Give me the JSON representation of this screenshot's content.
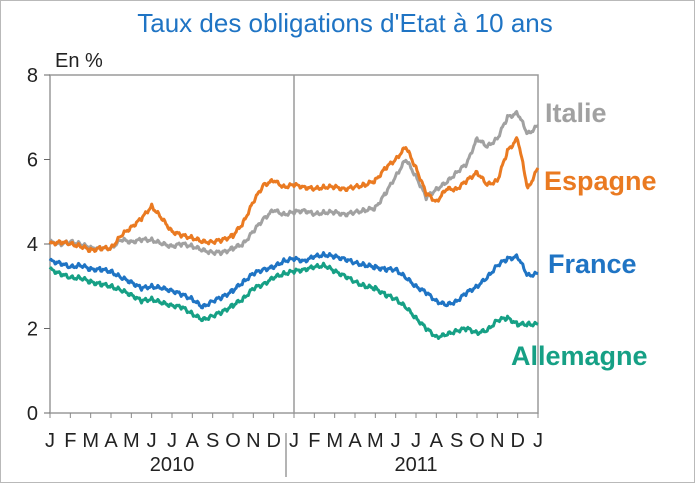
{
  "chart_data": {
    "type": "line",
    "title": "Taux des obligations d'Etat à 10 ans",
    "ylabel": "En  %",
    "ylim": [
      0,
      8
    ],
    "yticks": [
      0,
      2,
      4,
      6,
      8
    ],
    "grid": false,
    "legend": "direct labels at right end of each line",
    "x_start": "2010-01",
    "x_end": "2012-01",
    "month_labels": [
      "J",
      "F",
      "M",
      "A",
      "M",
      "J",
      "J",
      "A",
      "S",
      "O",
      "N",
      "D",
      "J",
      "F",
      "M",
      "A",
      "M",
      "J",
      "J",
      "A",
      "S",
      "O",
      "N",
      "D",
      "J"
    ],
    "years": [
      "2010",
      "2011"
    ],
    "colors": {
      "Italie": "#a1a1a1",
      "Espagne": "#ea7a21",
      "France": "#1f74c4",
      "Allemagne": "#16a085"
    },
    "series": [
      {
        "name": "Italie",
        "x": [
          0,
          0.5,
          1,
          1.5,
          2,
          2.5,
          3,
          3.5,
          4,
          4.5,
          5,
          5.5,
          6,
          6.5,
          7,
          7.5,
          8,
          8.5,
          9,
          9.5,
          10,
          10.5,
          11,
          11.5,
          12,
          12.5,
          13,
          13.5,
          14,
          14.5,
          15,
          15.5,
          16,
          16.5,
          17,
          17.5,
          18,
          18.5,
          19,
          19.5,
          20,
          20.5,
          21,
          21.5,
          22,
          22.5,
          23,
          23.5,
          24
        ],
        "values": [
          4.05,
          4.0,
          4.05,
          4.0,
          3.9,
          3.9,
          3.9,
          4.1,
          4.05,
          4.1,
          4.1,
          4.0,
          3.95,
          4.0,
          3.95,
          3.85,
          3.8,
          3.8,
          3.9,
          4.0,
          4.3,
          4.6,
          4.8,
          4.7,
          4.75,
          4.8,
          4.7,
          4.75,
          4.75,
          4.7,
          4.75,
          4.8,
          4.85,
          5.2,
          5.6,
          6.0,
          5.6,
          5.1,
          5.3,
          5.45,
          5.7,
          5.9,
          6.5,
          6.3,
          6.5,
          7.0,
          7.1,
          6.6,
          6.8
        ]
      },
      {
        "name": "Espagne",
        "x": [
          0,
          0.5,
          1,
          1.5,
          2,
          2.5,
          3,
          3.5,
          4,
          4.5,
          5,
          5.5,
          6,
          6.5,
          7,
          7.5,
          8,
          8.5,
          9,
          9.5,
          10,
          10.5,
          11,
          11.5,
          12,
          12.5,
          13,
          13.5,
          14,
          14.5,
          15,
          15.5,
          16,
          16.5,
          17,
          17.5,
          18,
          18.5,
          19,
          19.5,
          20,
          20.5,
          21,
          21.5,
          22,
          22.5,
          23,
          23.5,
          24
        ],
        "values": [
          4.0,
          4.05,
          4.0,
          3.95,
          3.85,
          3.9,
          3.9,
          4.2,
          4.4,
          4.6,
          4.9,
          4.6,
          4.3,
          4.2,
          4.15,
          4.05,
          4.05,
          4.1,
          4.2,
          4.5,
          5.0,
          5.4,
          5.5,
          5.35,
          5.4,
          5.35,
          5.3,
          5.35,
          5.35,
          5.3,
          5.35,
          5.4,
          5.5,
          5.8,
          6.0,
          6.3,
          5.8,
          5.2,
          5.0,
          5.3,
          5.3,
          5.5,
          5.7,
          5.4,
          5.5,
          6.2,
          6.5,
          5.3,
          5.8
        ]
      },
      {
        "name": "France",
        "x": [
          0,
          0.5,
          1,
          1.5,
          2,
          2.5,
          3,
          3.5,
          4,
          4.5,
          5,
          5.5,
          6,
          6.5,
          7,
          7.5,
          8,
          8.5,
          9,
          9.5,
          10,
          10.5,
          11,
          11.5,
          12,
          12.5,
          13,
          13.5,
          14,
          14.5,
          15,
          15.5,
          16,
          16.5,
          17,
          17.5,
          18,
          18.5,
          19,
          19.5,
          20,
          20.5,
          21,
          21.5,
          22,
          22.5,
          23,
          23.5,
          24
        ],
        "values": [
          3.6,
          3.55,
          3.45,
          3.5,
          3.4,
          3.4,
          3.35,
          3.2,
          3.1,
          2.95,
          3.0,
          2.95,
          2.9,
          2.8,
          2.7,
          2.5,
          2.65,
          2.75,
          2.9,
          3.1,
          3.3,
          3.4,
          3.45,
          3.6,
          3.65,
          3.6,
          3.7,
          3.75,
          3.7,
          3.65,
          3.55,
          3.5,
          3.45,
          3.4,
          3.4,
          3.2,
          3.0,
          2.85,
          2.65,
          2.55,
          2.65,
          2.85,
          3.0,
          3.2,
          3.5,
          3.65,
          3.7,
          3.25,
          3.3
        ]
      },
      {
        "name": "Allemagne",
        "x": [
          0,
          0.5,
          1,
          1.5,
          2,
          2.5,
          3,
          3.5,
          4,
          4.5,
          5,
          5.5,
          6,
          6.5,
          7,
          7.5,
          8,
          8.5,
          9,
          9.5,
          10,
          10.5,
          11,
          11.5,
          12,
          12.5,
          13,
          13.5,
          14,
          14.5,
          15,
          15.5,
          16,
          16.5,
          17,
          17.5,
          18,
          18.5,
          19,
          19.5,
          20,
          20.5,
          21,
          21.5,
          22,
          22.5,
          23,
          23.5,
          24
        ],
        "values": [
          3.4,
          3.3,
          3.2,
          3.2,
          3.1,
          3.05,
          3.0,
          2.9,
          2.8,
          2.65,
          2.7,
          2.6,
          2.55,
          2.5,
          2.35,
          2.2,
          2.3,
          2.4,
          2.55,
          2.7,
          2.95,
          3.05,
          3.2,
          3.3,
          3.35,
          3.4,
          3.45,
          3.5,
          3.35,
          3.25,
          3.1,
          3.0,
          2.95,
          2.8,
          2.7,
          2.5,
          2.25,
          2.0,
          1.8,
          1.85,
          1.95,
          2.0,
          1.9,
          1.95,
          2.2,
          2.25,
          2.1,
          2.1,
          2.1
        ]
      }
    ]
  }
}
